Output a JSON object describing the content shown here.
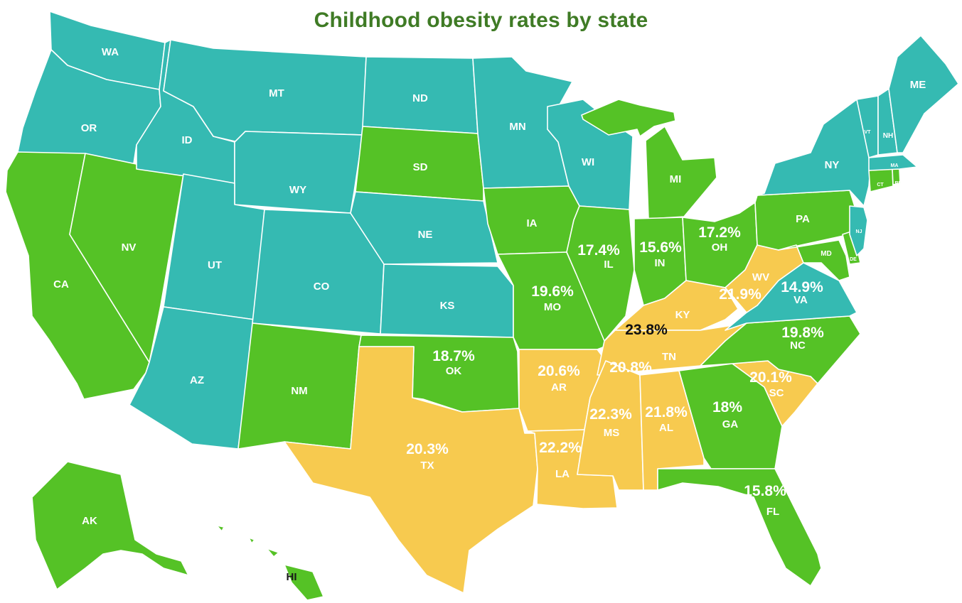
{
  "title": "Childhood obesity rates by state",
  "colors": {
    "teal": "#35bab2",
    "green": "#55c226",
    "yellow": "#f7ca4f",
    "title": "#3f7b25"
  },
  "states": [
    {
      "abbr": "WA",
      "group": "teal"
    },
    {
      "abbr": "OR",
      "group": "teal"
    },
    {
      "abbr": "CA",
      "group": "green"
    },
    {
      "abbr": "NV",
      "group": "green"
    },
    {
      "abbr": "ID",
      "group": "teal"
    },
    {
      "abbr": "MT",
      "group": "teal"
    },
    {
      "abbr": "WY",
      "group": "teal"
    },
    {
      "abbr": "UT",
      "group": "teal"
    },
    {
      "abbr": "AZ",
      "group": "teal"
    },
    {
      "abbr": "CO",
      "group": "teal"
    },
    {
      "abbr": "NM",
      "group": "green"
    },
    {
      "abbr": "ND",
      "group": "teal"
    },
    {
      "abbr": "SD",
      "group": "green"
    },
    {
      "abbr": "NE",
      "group": "teal"
    },
    {
      "abbr": "KS",
      "group": "teal"
    },
    {
      "abbr": "OK",
      "group": "green",
      "rate": "18.7%"
    },
    {
      "abbr": "TX",
      "group": "yellow",
      "rate": "20.3%"
    },
    {
      "abbr": "MN",
      "group": "teal"
    },
    {
      "abbr": "IA",
      "group": "green"
    },
    {
      "abbr": "MO",
      "group": "green",
      "rate": "19.6%"
    },
    {
      "abbr": "AR",
      "group": "yellow",
      "rate": "20.6%"
    },
    {
      "abbr": "LA",
      "group": "yellow",
      "rate": "22.2%"
    },
    {
      "abbr": "WI",
      "group": "teal"
    },
    {
      "abbr": "IL",
      "group": "green",
      "rate": "17.4%"
    },
    {
      "abbr": "MI",
      "group": "green"
    },
    {
      "abbr": "IN",
      "group": "green",
      "rate": "15.6%"
    },
    {
      "abbr": "OH",
      "group": "green",
      "rate": "17.2%"
    },
    {
      "abbr": "KY",
      "group": "yellow",
      "rate": "23.8%"
    },
    {
      "abbr": "TN",
      "group": "yellow",
      "rate": "20.8%"
    },
    {
      "abbr": "MS",
      "group": "yellow",
      "rate": "22.3%"
    },
    {
      "abbr": "AL",
      "group": "yellow",
      "rate": "21.8%"
    },
    {
      "abbr": "GA",
      "group": "green",
      "rate": "18%"
    },
    {
      "abbr": "FL",
      "group": "green",
      "rate": "15.8%"
    },
    {
      "abbr": "SC",
      "group": "yellow",
      "rate": "20.1%"
    },
    {
      "abbr": "NC",
      "group": "green",
      "rate": "19.8%"
    },
    {
      "abbr": "VA",
      "group": "teal",
      "rate": "14.9%"
    },
    {
      "abbr": "WV",
      "group": "yellow",
      "rate": "21.9%"
    },
    {
      "abbr": "PA",
      "group": "green"
    },
    {
      "abbr": "NY",
      "group": "teal"
    },
    {
      "abbr": "MD",
      "group": "green"
    },
    {
      "abbr": "DE",
      "group": "green"
    },
    {
      "abbr": "NJ",
      "group": "teal"
    },
    {
      "abbr": "CT",
      "group": "green"
    },
    {
      "abbr": "RI",
      "group": "green"
    },
    {
      "abbr": "MA",
      "group": "teal"
    },
    {
      "abbr": "VT",
      "group": "teal"
    },
    {
      "abbr": "NH",
      "group": "teal"
    },
    {
      "abbr": "ME",
      "group": "teal"
    },
    {
      "abbr": "AK",
      "group": "green"
    },
    {
      "abbr": "HI",
      "group": "green"
    }
  ]
}
